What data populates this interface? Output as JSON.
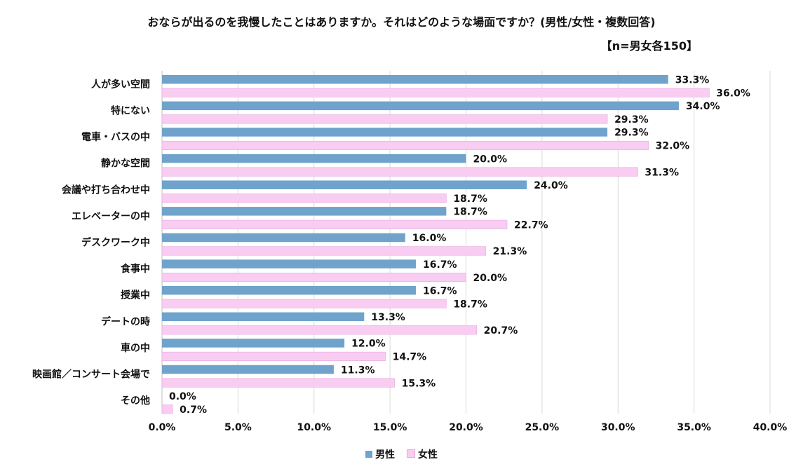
{
  "chart_data": {
    "type": "bar",
    "orientation": "horizontal",
    "title": "おならが出るのを我慢したことはありますか。それはどのような場面ですか？(男性/女性・複数回答)",
    "subtitle": "【n=男女各150】",
    "categories": [
      "人が多い空間",
      "特にない",
      "電車・バスの中",
      "静かな空間",
      "会議や打ち合わせ中",
      "エレベーターの中",
      "デスクワーク中",
      "食事中",
      "授業中",
      "デートの時",
      "車の中",
      "映画館／コンサート会場で",
      "その他"
    ],
    "series": [
      {
        "name": "男性",
        "color": "#6fa3cc",
        "values": [
          33.3,
          34.0,
          29.3,
          20.0,
          24.0,
          18.7,
          16.0,
          16.7,
          16.7,
          13.3,
          12.0,
          11.3,
          0.0
        ]
      },
      {
        "name": "女性",
        "color": "#f9cdf2",
        "values": [
          36.0,
          29.3,
          32.0,
          31.3,
          18.7,
          22.7,
          21.3,
          20.0,
          18.7,
          20.7,
          14.7,
          15.3,
          0.7
        ]
      }
    ],
    "xlim": [
      0,
      40
    ],
    "xticks": [
      0,
      5,
      10,
      15,
      20,
      25,
      30,
      35,
      40
    ],
    "value_suffix": "%",
    "grid": true,
    "legend": "bottom"
  }
}
